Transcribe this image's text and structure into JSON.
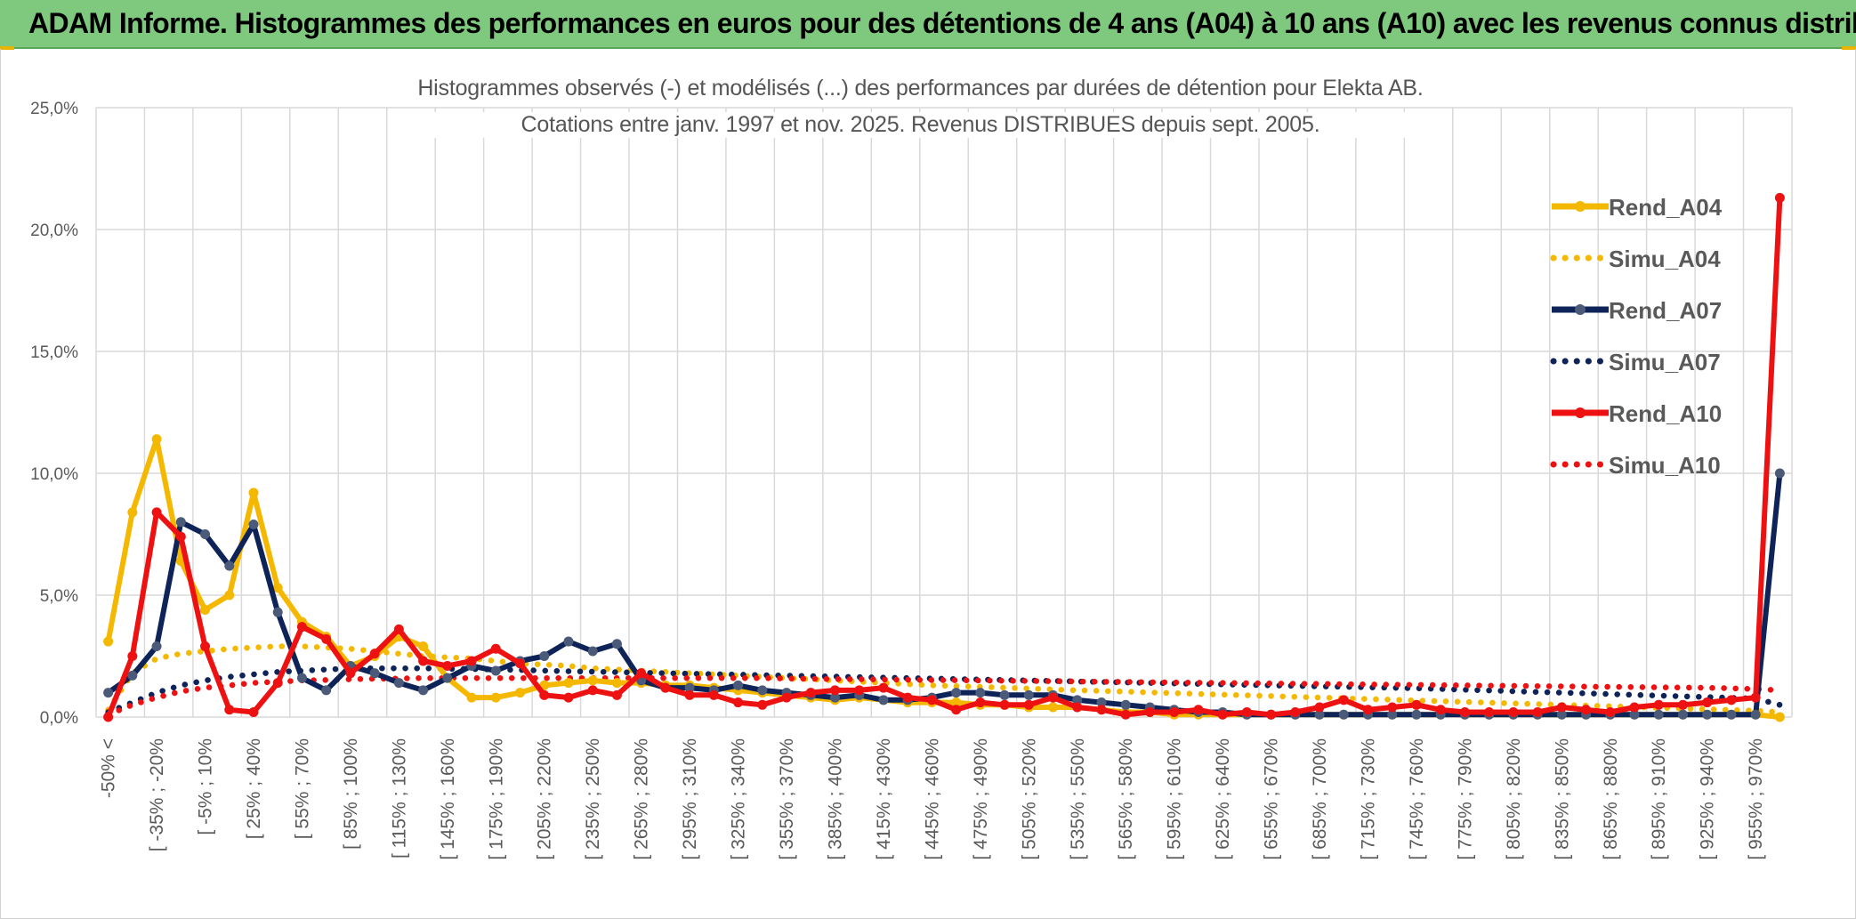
{
  "header": {
    "title": "ADAM Informe. Histogrammes des performances en euros pour des détentions de 4 ans (A04) à 10 ans (A10) avec les revenus connus distribués"
  },
  "chart_title": {
    "line1": "Histogrammes observés (-) et modélisés (...) des performances par durées de détention pour Elekta AB.",
    "line2": "Cotations entre janv. 1997 et nov. 2025. Revenus DISTRIBUES depuis sept. 2005."
  },
  "colors": {
    "yellow": "#f5b800",
    "navy": "#0e2358",
    "navy_marker": "#4a5a78",
    "red": "#ee1111",
    "header_bg": "#7fc97f",
    "grid": "#d9d9d9"
  },
  "chart_data": {
    "type": "line",
    "ylim": [
      0,
      25
    ],
    "yticks": [
      "0,0%",
      "5,0%",
      "10,0%",
      "15,0%",
      "20,0%",
      "25,0%"
    ],
    "x_tick_labels": [
      "-50% <",
      "[ -35% ; -20%",
      "[ -5% ; 10%",
      "[ 25% ; 40%",
      "[ 55% ; 70%",
      "[ 85% ; 100%",
      "[ 115% ; 130%",
      "[ 145% ; 160%",
      "[ 175% ; 190%",
      "[ 205% ; 220%",
      "[ 235% ; 250%",
      "[ 265% ; 280%",
      "[ 295% ; 310%",
      "[ 325% ; 340%",
      "[ 355% ; 370%",
      "[ 385% ; 400%",
      "[ 415% ; 430%",
      "[ 445% ; 460%",
      "[ 475% ; 490%",
      "[ 505% ; 520%",
      "[ 535% ; 550%",
      "[ 565% ; 580%",
      "[ 595% ; 610%",
      "[ 625% ; 640%",
      "[ 655% ; 670%",
      "[ 685% ; 700%",
      "[ 715% ; 730%",
      "[ 745% ; 760%",
      "[ 775% ; 790%",
      "[ 805% ; 820%",
      "[ 835% ; 850%",
      "[ 865% ; 880%",
      "[ 895% ; 910%",
      "[ 925% ; 940%",
      "[ 955% ; 970%"
    ],
    "n_categories": 70,
    "legend": [
      "Rend_A04",
      "Simu_A04",
      "Rend_A07",
      "Simu_A07",
      "Rend_A10",
      "Simu_A10"
    ],
    "series": [
      {
        "name": "Rend_A04",
        "style": "solid",
        "color": "#f5b800",
        "values": [
          3.1,
          8.4,
          11.4,
          6.4,
          4.4,
          5.0,
          9.2,
          5.3,
          3.9,
          3.3,
          2.1,
          2.5,
          3.3,
          2.9,
          1.6,
          0.8,
          0.8,
          1.0,
          1.3,
          1.4,
          1.5,
          1.4,
          1.4,
          1.3,
          1.3,
          1.2,
          1.1,
          1.0,
          0.9,
          0.8,
          0.7,
          0.8,
          0.7,
          0.6,
          0.6,
          0.6,
          0.5,
          0.5,
          0.4,
          0.4,
          0.4,
          0.3,
          0.2,
          0.2,
          0.1,
          0.1,
          0.1,
          0.1,
          0.1,
          0.1,
          0.1,
          0.1,
          0.1,
          0.1,
          0.1,
          0.1,
          0.1,
          0.1,
          0.1,
          0.1,
          0.1,
          0.1,
          0.1,
          0.1,
          0.1,
          0.1,
          0.1,
          0.1,
          0.1,
          0.0
        ]
      },
      {
        "name": "Simu_A04",
        "style": "dotted",
        "color": "#f5b800",
        "values": [
          0.3,
          1.8,
          2.4,
          2.6,
          2.7,
          2.8,
          2.85,
          2.9,
          2.9,
          2.85,
          2.8,
          2.7,
          2.6,
          2.5,
          2.45,
          2.4,
          2.3,
          2.2,
          2.15,
          2.1,
          2.0,
          1.95,
          1.9,
          1.85,
          1.8,
          1.75,
          1.7,
          1.65,
          1.6,
          1.55,
          1.5,
          1.45,
          1.4,
          1.35,
          1.3,
          1.27,
          1.24,
          1.2,
          1.17,
          1.13,
          1.1,
          1.07,
          1.04,
          1.01,
          0.98,
          0.95,
          0.92,
          0.89,
          0.86,
          0.83,
          0.8,
          0.77,
          0.74,
          0.71,
          0.68,
          0.65,
          0.62,
          0.59,
          0.56,
          0.53,
          0.5,
          0.47,
          0.44,
          0.41,
          0.38,
          0.35,
          0.32,
          0.29,
          0.26,
          0.2
        ]
      },
      {
        "name": "Rend_A07",
        "style": "solid",
        "color": "#0e2358",
        "values": [
          1.0,
          1.7,
          2.9,
          8.0,
          7.5,
          6.2,
          7.9,
          4.3,
          1.6,
          1.1,
          2.1,
          1.8,
          1.4,
          1.1,
          1.6,
          2.1,
          1.9,
          2.3,
          2.5,
          3.1,
          2.7,
          3.0,
          1.5,
          1.2,
          1.2,
          1.1,
          1.3,
          1.1,
          1.0,
          0.9,
          0.8,
          0.9,
          0.7,
          0.7,
          0.8,
          1.0,
          1.0,
          0.9,
          0.9,
          0.9,
          0.7,
          0.6,
          0.5,
          0.4,
          0.3,
          0.2,
          0.2,
          0.1,
          0.1,
          0.1,
          0.1,
          0.1,
          0.1,
          0.1,
          0.1,
          0.1,
          0.1,
          0.1,
          0.1,
          0.1,
          0.1,
          0.1,
          0.1,
          0.1,
          0.1,
          0.1,
          0.1,
          0.1,
          0.1,
          10.0
        ]
      },
      {
        "name": "Simu_A07",
        "style": "dotted",
        "color": "#0e2358",
        "values": [
          0.2,
          0.6,
          1.0,
          1.3,
          1.5,
          1.65,
          1.75,
          1.85,
          1.9,
          1.95,
          2.0,
          2.0,
          2.0,
          2.0,
          1.98,
          1.97,
          1.95,
          1.93,
          1.9,
          1.88,
          1.86,
          1.84,
          1.82,
          1.8,
          1.78,
          1.76,
          1.74,
          1.72,
          1.7,
          1.68,
          1.66,
          1.64,
          1.62,
          1.6,
          1.58,
          1.56,
          1.54,
          1.52,
          1.5,
          1.48,
          1.46,
          1.44,
          1.42,
          1.4,
          1.38,
          1.36,
          1.34,
          1.32,
          1.3,
          1.28,
          1.26,
          1.24,
          1.22,
          1.2,
          1.18,
          1.15,
          1.12,
          1.09,
          1.06,
          1.03,
          1.0,
          0.97,
          0.94,
          0.91,
          0.88,
          0.85,
          0.82,
          0.79,
          0.76,
          0.5
        ]
      },
      {
        "name": "Rend_A10",
        "style": "solid",
        "color": "#ee1111",
        "values": [
          0.0,
          2.5,
          8.4,
          7.4,
          2.9,
          0.3,
          0.2,
          1.4,
          3.7,
          3.2,
          1.8,
          2.6,
          3.6,
          2.3,
          2.1,
          2.3,
          2.8,
          2.2,
          0.9,
          0.8,
          1.1,
          0.9,
          1.8,
          1.2,
          0.9,
          0.9,
          0.6,
          0.5,
          0.8,
          1.0,
          1.1,
          1.1,
          1.2,
          0.8,
          0.7,
          0.3,
          0.6,
          0.5,
          0.5,
          0.8,
          0.4,
          0.3,
          0.1,
          0.2,
          0.2,
          0.3,
          0.1,
          0.2,
          0.1,
          0.2,
          0.4,
          0.7,
          0.3,
          0.4,
          0.5,
          0.3,
          0.2,
          0.2,
          0.2,
          0.2,
          0.4,
          0.3,
          0.2,
          0.4,
          0.5,
          0.5,
          0.6,
          0.7,
          0.8,
          21.3
        ]
      },
      {
        "name": "Simu_A10",
        "style": "dotted",
        "color": "#ee1111",
        "values": [
          0.1,
          0.5,
          0.8,
          1.05,
          1.2,
          1.3,
          1.4,
          1.45,
          1.5,
          1.52,
          1.55,
          1.57,
          1.58,
          1.6,
          1.6,
          1.6,
          1.6,
          1.6,
          1.6,
          1.6,
          1.6,
          1.6,
          1.6,
          1.6,
          1.6,
          1.6,
          1.6,
          1.6,
          1.58,
          1.57,
          1.56,
          1.55,
          1.54,
          1.53,
          1.52,
          1.51,
          1.5,
          1.49,
          1.48,
          1.47,
          1.46,
          1.45,
          1.44,
          1.43,
          1.42,
          1.41,
          1.4,
          1.39,
          1.38,
          1.37,
          1.36,
          1.35,
          1.34,
          1.33,
          1.32,
          1.31,
          1.3,
          1.29,
          1.28,
          1.27,
          1.26,
          1.25,
          1.24,
          1.23,
          1.22,
          1.21,
          1.2,
          1.18,
          1.15,
          1.1
        ]
      }
    ]
  }
}
